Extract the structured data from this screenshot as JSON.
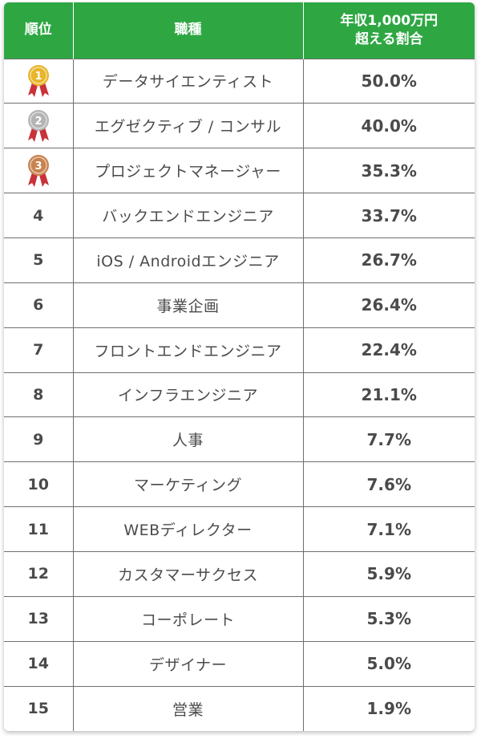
{
  "header": {
    "rank": "順位",
    "job": "職種",
    "percent_line1": "年収1,000万円",
    "percent_line2": "超える割合"
  },
  "medal_colors": {
    "gold": "#e8b52b",
    "silver": "#b4b4b4",
    "bronze": "#c9834f",
    "ribbon": "#c9323a"
  },
  "accent_color": "#2ea743",
  "rows": [
    {
      "rank": "1",
      "medal": "gold-medal-icon",
      "job": "データサイエンティスト",
      "percent": "50.0%"
    },
    {
      "rank": "2",
      "medal": "silver-medal-icon",
      "job": "エグゼクティブ / コンサル",
      "percent": "40.0%"
    },
    {
      "rank": "3",
      "medal": "bronze-medal-icon",
      "job": "プロジェクトマネージャー",
      "percent": "35.3%"
    },
    {
      "rank": "4",
      "job": "バックエンドエンジニア",
      "percent": "33.7%"
    },
    {
      "rank": "5",
      "job": "iOS / Androidエンジニア",
      "percent": "26.7%"
    },
    {
      "rank": "6",
      "job": "事業企画",
      "percent": "26.4%"
    },
    {
      "rank": "7",
      "job": "フロントエンドエンジニア",
      "percent": "22.4%"
    },
    {
      "rank": "8",
      "job": "インフラエンジニア",
      "percent": "21.1%"
    },
    {
      "rank": "9",
      "job": "人事",
      "percent": "7.7%"
    },
    {
      "rank": "10",
      "job": "マーケティング",
      "percent": "7.6%"
    },
    {
      "rank": "11",
      "job": "WEBディレクター",
      "percent": "7.1%"
    },
    {
      "rank": "12",
      "job": "カスタマーサクセス",
      "percent": "5.9%"
    },
    {
      "rank": "13",
      "job": "コーポレート",
      "percent": "5.3%"
    },
    {
      "rank": "14",
      "job": "デザイナー",
      "percent": "5.0%"
    },
    {
      "rank": "15",
      "job": "営業",
      "percent": "1.9%"
    }
  ]
}
